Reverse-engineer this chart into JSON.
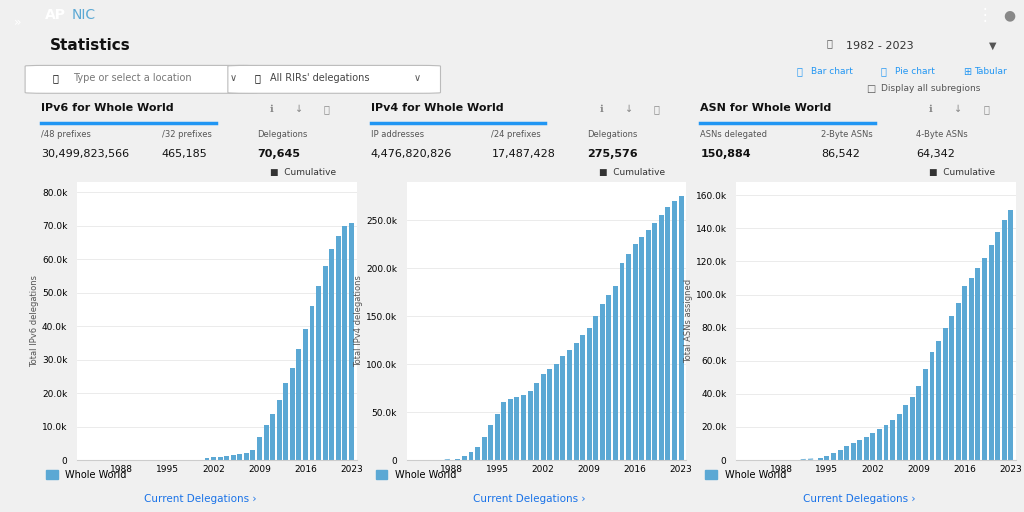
{
  "bar_color": "#5ba8d4",
  "grid_color": "#e8e8e8",
  "blue_link": "#1a73e8",
  "sidebar_color": "#1c2333",
  "header_color": "#1c2333",
  "ipv6_title": "IPv6 for Whole World",
  "ipv4_title": "IPv4 for Whole World",
  "asn_title": "ASN for Whole World",
  "ipv6_labels": [
    "/48 prefixes",
    "/32 prefixes",
    "Delegations"
  ],
  "ipv6_vals": [
    "30,499,823,566",
    "465,185",
    "70,645"
  ],
  "ipv6_bold": [
    false,
    false,
    true
  ],
  "ipv4_labels": [
    "IP addresses",
    "/24 prefixes",
    "Delegations"
  ],
  "ipv4_vals": [
    "4,476,820,826",
    "17,487,428",
    "275,576"
  ],
  "ipv4_bold": [
    false,
    false,
    true
  ],
  "asn_labels": [
    "ASNs delegated",
    "2-Byte ASNs",
    "4-Byte ASNs"
  ],
  "asn_vals": [
    "150,884",
    "86,542",
    "64,342"
  ],
  "asn_bold": [
    true,
    false,
    false
  ],
  "years": [
    1982,
    1983,
    1984,
    1985,
    1986,
    1987,
    1988,
    1989,
    1990,
    1991,
    1992,
    1993,
    1994,
    1995,
    1996,
    1997,
    1998,
    1999,
    2000,
    2001,
    2002,
    2003,
    2004,
    2005,
    2006,
    2007,
    2008,
    2009,
    2010,
    2011,
    2012,
    2013,
    2014,
    2015,
    2016,
    2017,
    2018,
    2019,
    2020,
    2021,
    2022,
    2023
  ],
  "ipv6_values": [
    0,
    0,
    0,
    0,
    0,
    0,
    0,
    0,
    0,
    0,
    0,
    0,
    0,
    0,
    0,
    0,
    0,
    0,
    300,
    500,
    800,
    1000,
    1200,
    1500,
    1800,
    2200,
    3000,
    7000,
    10500,
    13800,
    18000,
    23000,
    27500,
    33000,
    39000,
    46000,
    52000,
    58000,
    63000,
    67000,
    70000,
    70645
  ],
  "ipv4_values": [
    0,
    0,
    0,
    0,
    0,
    100,
    500,
    1500,
    4000,
    8000,
    14000,
    24000,
    37000,
    48000,
    60000,
    64000,
    66000,
    68000,
    72000,
    80000,
    90000,
    95000,
    100000,
    108000,
    115000,
    122000,
    130000,
    138000,
    150000,
    163000,
    172000,
    182000,
    205000,
    215000,
    225000,
    233000,
    240000,
    247000,
    256000,
    264000,
    270000,
    275576
  ],
  "asn_values": [
    0,
    0,
    0,
    0,
    0,
    0,
    0,
    0,
    0,
    100,
    300,
    600,
    1200,
    2500,
    4000,
    6000,
    8500,
    10000,
    12000,
    14000,
    16500,
    19000,
    21000,
    24000,
    28000,
    33000,
    38000,
    45000,
    55000,
    65000,
    72000,
    80000,
    87000,
    95000,
    105000,
    110000,
    116000,
    122000,
    130000,
    138000,
    145000,
    150884
  ],
  "ylabel_ipv6": "Total IPv6 delegations",
  "ylabel_ipv4": "Total IPv4 delegations",
  "ylabel_asn": "Total ASNs assigned",
  "ipv6_yticks": [
    0,
    10000,
    20000,
    30000,
    40000,
    50000,
    60000,
    70000,
    80000
  ],
  "ipv6_ytick_labels": [
    "0",
    "10.0k",
    "20.0k",
    "30.0k",
    "40.0k",
    "50.0k",
    "60.0k",
    "70.0k",
    "80.0k"
  ],
  "ipv6_ylim": [
    0,
    83000
  ],
  "ipv4_yticks": [
    0,
    50000,
    100000,
    150000,
    200000,
    250000
  ],
  "ipv4_ytick_labels": [
    "0",
    "50.0k",
    "100.0k",
    "150.0k",
    "200.0k",
    "250.0k"
  ],
  "ipv4_ylim": [
    0,
    290000
  ],
  "asn_yticks": [
    0,
    20000,
    40000,
    60000,
    80000,
    100000,
    120000,
    140000,
    160000
  ],
  "asn_ytick_labels": [
    "0",
    "20.0k",
    "40.0k",
    "60.0k",
    "80.0k",
    "100.0k",
    "120.0k",
    "140.0k",
    "160.0k"
  ],
  "asn_ylim": [
    0,
    168000
  ],
  "xtick_years": [
    1988,
    1995,
    2002,
    2009,
    2016,
    2023
  ],
  "legend_label": "Whole World",
  "cumulative_label": "Cumulative",
  "current_delegations": "Current Delegations ›",
  "stats_title": "Statistics",
  "year_range": "1982 - 2023",
  "filter1": "Type or select a location",
  "filter2": "All RIRs' delegations",
  "display_subregions": "Display all subregions"
}
